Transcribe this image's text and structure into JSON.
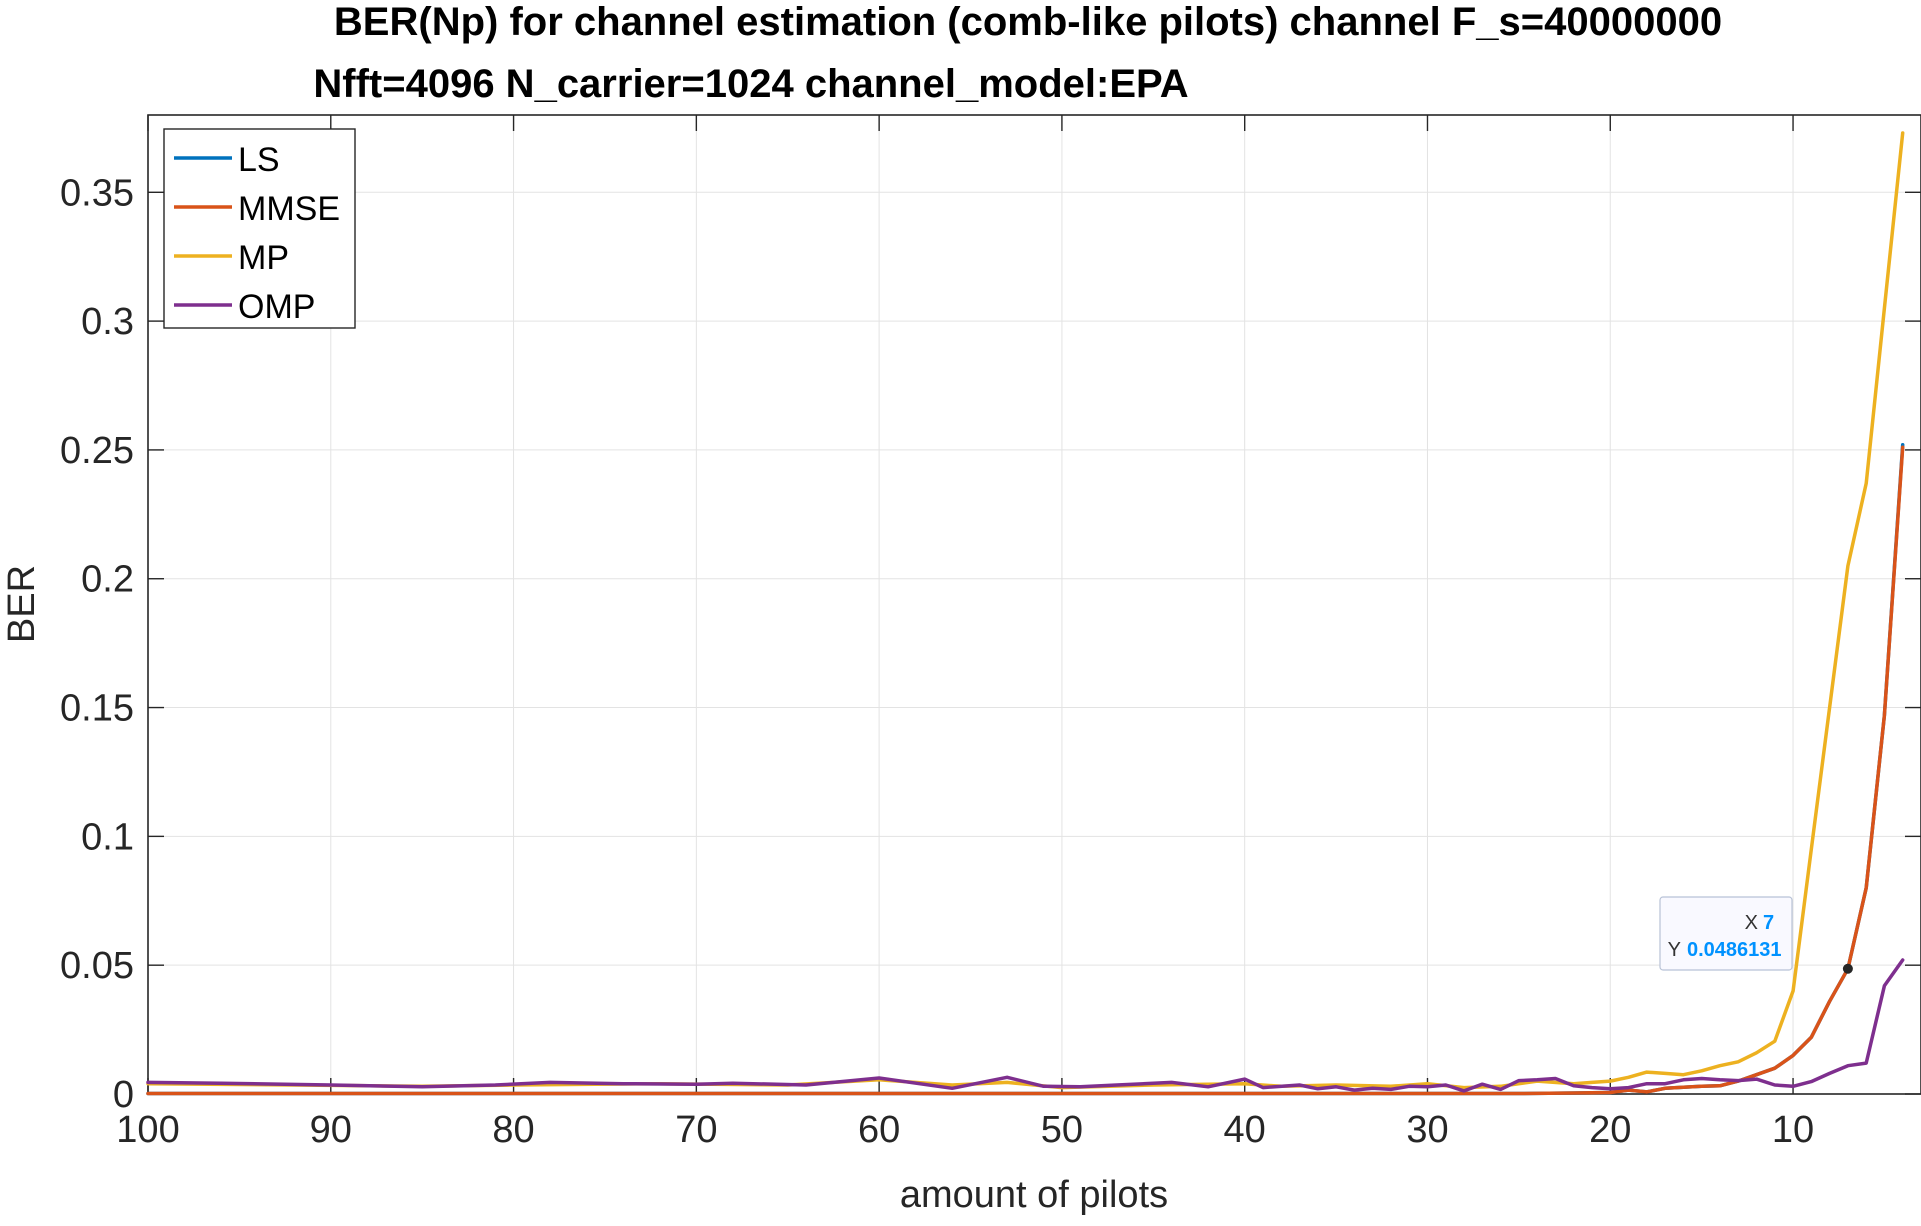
{
  "chart_data": {
    "type": "line",
    "title_line1": "BER(Np) for channel estimation (comb-like pilots) channel F_s=40000000",
    "title_line2": "Nfft=4096 N_carrier=1024 channel_model:EPA",
    "xlabel": "amount of pilots",
    "ylabel": "BER",
    "xlim": [
      100,
      3
    ],
    "ylim": [
      0,
      0.38
    ],
    "x_reversed": true,
    "grid": true,
    "legend_position": "top-left",
    "xticks": [
      100,
      90,
      80,
      70,
      60,
      50,
      40,
      30,
      20,
      10
    ],
    "xtick_labels": [
      "100",
      "90",
      "80",
      "70",
      "60",
      "50",
      "40",
      "30",
      "20",
      "10"
    ],
    "yticks": [
      0,
      0.05,
      0.1,
      0.15,
      0.2,
      0.25,
      0.3,
      0.35
    ],
    "ytick_labels": [
      "0",
      "0.05",
      "0.1",
      "0.15",
      "0.2",
      "0.25",
      "0.3",
      "0.35"
    ],
    "series": [
      {
        "name": "LS",
        "color": "#0072BD",
        "points": [
          [
            100,
            0.0002
          ],
          [
            90,
            0.0002
          ],
          [
            80,
            0.0002
          ],
          [
            70,
            0.0002
          ],
          [
            60,
            0.0002
          ],
          [
            50,
            0.0002
          ],
          [
            40,
            0.0002
          ],
          [
            30,
            0.0002
          ],
          [
            25,
            0.0002
          ],
          [
            22,
            0.0004
          ],
          [
            20,
            0.0006
          ],
          [
            19,
            0.0015
          ],
          [
            18,
            0.0008
          ],
          [
            17,
            0.0022
          ],
          [
            16,
            0.0026
          ],
          [
            15,
            0.003
          ],
          [
            14,
            0.0032
          ],
          [
            13,
            0.005
          ],
          [
            12,
            0.0075
          ],
          [
            11,
            0.01
          ],
          [
            10,
            0.015
          ],
          [
            9,
            0.022
          ],
          [
            8,
            0.036
          ],
          [
            7,
            0.0486131
          ],
          [
            6,
            0.08
          ],
          [
            5,
            0.147
          ],
          [
            4,
            0.252
          ]
        ]
      },
      {
        "name": "MMSE",
        "color": "#D95319",
        "points": [
          [
            100,
            0.0002
          ],
          [
            90,
            0.0002
          ],
          [
            80,
            0.0002
          ],
          [
            70,
            0.0002
          ],
          [
            60,
            0.0002
          ],
          [
            50,
            0.0002
          ],
          [
            40,
            0.0002
          ],
          [
            30,
            0.0002
          ],
          [
            25,
            0.0002
          ],
          [
            22,
            0.0004
          ],
          [
            20,
            0.0006
          ],
          [
            19,
            0.0015
          ],
          [
            18,
            0.0008
          ],
          [
            17,
            0.0022
          ],
          [
            16,
            0.0026
          ],
          [
            15,
            0.003
          ],
          [
            14,
            0.0032
          ],
          [
            13,
            0.005
          ],
          [
            12,
            0.0075
          ],
          [
            11,
            0.01
          ],
          [
            10,
            0.015
          ],
          [
            9,
            0.022
          ],
          [
            8,
            0.036
          ],
          [
            7,
            0.0486131
          ],
          [
            6,
            0.08
          ],
          [
            5,
            0.147
          ],
          [
            4,
            0.251
          ]
        ]
      },
      {
        "name": "MP",
        "color": "#EDB120",
        "points": [
          [
            100,
            0.004
          ],
          [
            92,
            0.0035
          ],
          [
            85,
            0.003
          ],
          [
            80,
            0.0035
          ],
          [
            72,
            0.004
          ],
          [
            65,
            0.0035
          ],
          [
            60,
            0.0055
          ],
          [
            56,
            0.0035
          ],
          [
            53,
            0.0045
          ],
          [
            50,
            0.0025
          ],
          [
            45,
            0.0035
          ],
          [
            40,
            0.004
          ],
          [
            38,
            0.003
          ],
          [
            35,
            0.0035
          ],
          [
            32,
            0.003
          ],
          [
            30,
            0.004
          ],
          [
            28,
            0.0025
          ],
          [
            26,
            0.003
          ],
          [
            24,
            0.005
          ],
          [
            22,
            0.004
          ],
          [
            21,
            0.0045
          ],
          [
            20,
            0.005
          ],
          [
            19,
            0.0065
          ],
          [
            18,
            0.0085
          ],
          [
            17,
            0.008
          ],
          [
            16,
            0.0075
          ],
          [
            15,
            0.009
          ],
          [
            14,
            0.011
          ],
          [
            13,
            0.0125
          ],
          [
            12,
            0.016
          ],
          [
            11,
            0.0205
          ],
          [
            10,
            0.04
          ],
          [
            9,
            0.095
          ],
          [
            8,
            0.15
          ],
          [
            7,
            0.205
          ],
          [
            6,
            0.237
          ],
          [
            5,
            0.305
          ],
          [
            4,
            0.373
          ]
        ]
      },
      {
        "name": "OMP",
        "color": "#7E2F8E",
        "points": [
          [
            100,
            0.0045
          ],
          [
            96,
            0.0042
          ],
          [
            90,
            0.0035
          ],
          [
            85,
            0.0028
          ],
          [
            81,
            0.0035
          ],
          [
            78,
            0.0045
          ],
          [
            74,
            0.004
          ],
          [
            70,
            0.0038
          ],
          [
            68,
            0.0042
          ],
          [
            64,
            0.0035
          ],
          [
            60,
            0.0062
          ],
          [
            56,
            0.0022
          ],
          [
            53,
            0.0065
          ],
          [
            51,
            0.003
          ],
          [
            49,
            0.0028
          ],
          [
            47,
            0.0035
          ],
          [
            44,
            0.0045
          ],
          [
            42,
            0.0028
          ],
          [
            40,
            0.0058
          ],
          [
            39,
            0.0025
          ],
          [
            37,
            0.0035
          ],
          [
            36,
            0.002
          ],
          [
            35,
            0.0028
          ],
          [
            34,
            0.0015
          ],
          [
            33,
            0.0022
          ],
          [
            32,
            0.0018
          ],
          [
            31,
            0.003
          ],
          [
            30,
            0.0028
          ],
          [
            29,
            0.0035
          ],
          [
            28,
            0.0012
          ],
          [
            27,
            0.0038
          ],
          [
            26,
            0.0018
          ],
          [
            25,
            0.0052
          ],
          [
            24,
            0.0055
          ],
          [
            23,
            0.006
          ],
          [
            22,
            0.0032
          ],
          [
            21,
            0.0025
          ],
          [
            20,
            0.002
          ],
          [
            19,
            0.0025
          ],
          [
            18,
            0.004
          ],
          [
            17,
            0.004
          ],
          [
            16,
            0.0055
          ],
          [
            15,
            0.006
          ],
          [
            14,
            0.0055
          ],
          [
            13,
            0.0052
          ],
          [
            12,
            0.0058
          ],
          [
            11,
            0.0035
          ],
          [
            10,
            0.003
          ],
          [
            9,
            0.0048
          ],
          [
            8,
            0.008
          ],
          [
            7,
            0.011
          ],
          [
            6,
            0.012
          ],
          [
            5,
            0.042
          ],
          [
            4,
            0.052
          ]
        ]
      }
    ],
    "datatip": {
      "x_label": "X",
      "x_value": "7",
      "y_label": "Y",
      "y_value": "0.0486131",
      "x": 7,
      "y": 0.0486131
    }
  }
}
